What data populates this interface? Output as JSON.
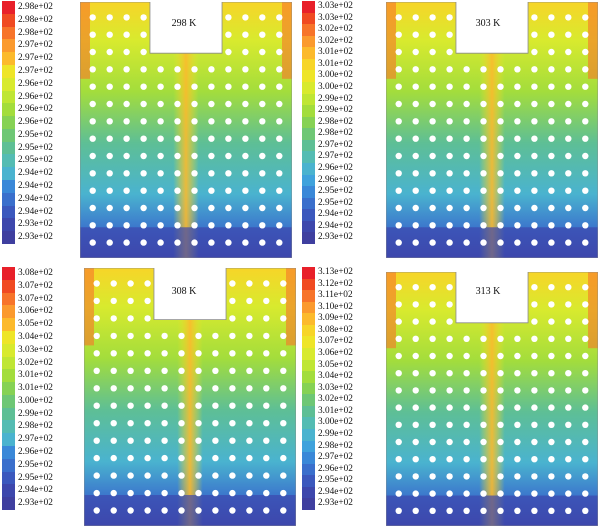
{
  "panels": [
    {
      "temperature_label": "298 K",
      "colorbar_labels": [
        "2.98e+02",
        "2.98e+02",
        "2.98e+02",
        "2.97e+02",
        "2.97e+02",
        "2.97e+02",
        "2.96e+02",
        "2.96e+02",
        "2.96e+02",
        "2.96e+02",
        "2.95e+02",
        "2.95e+02",
        "2.95e+02",
        "2.94e+02",
        "2.94e+02",
        "2.94e+02",
        "2.94e+02",
        "2.93e+02",
        "2.93e+02"
      ]
    },
    {
      "temperature_label": "303 K",
      "colorbar_labels": [
        "3.03e+02",
        "3.03e+02",
        "3.02e+02",
        "3.02e+02",
        "3.01e+02",
        "3.01e+02",
        "3.00e+02",
        "3.00e+02",
        "2.99e+02",
        "2.99e+02",
        "2.98e+02",
        "2.98e+02",
        "2.97e+02",
        "2.97e+02",
        "2.96e+02",
        "2.96e+02",
        "2.95e+02",
        "2.95e+02",
        "2.94e+02",
        "2.94e+02",
        "2.93e+02"
      ]
    },
    {
      "temperature_label": "308 K",
      "colorbar_labels": [
        "3.08e+02",
        "3.07e+02",
        "3.07e+02",
        "3.06e+02",
        "3.05e+02",
        "3.04e+02",
        "3.03e+02",
        "3.02e+02",
        "3.01e+02",
        "3.01e+02",
        "3.00e+02",
        "2.99e+02",
        "2.98e+02",
        "2.97e+02",
        "2.96e+02",
        "2.95e+02",
        "2.95e+02",
        "2.94e+02",
        "2.93e+02"
      ]
    },
    {
      "temperature_label": "313 K",
      "colorbar_labels": [
        "3.13e+02",
        "3.12e+02",
        "3.11e+02",
        "3.10e+02",
        "3.09e+02",
        "3.08e+02",
        "3.07e+02",
        "3.06e+02",
        "3.05e+02",
        "3.04e+02",
        "3.03e+02",
        "3.02e+02",
        "3.01e+02",
        "3.00e+02",
        "2.99e+02",
        "2.98e+02",
        "2.97e+02",
        "2.96e+02",
        "2.95e+02",
        "2.94e+02",
        "2.93e+02"
      ]
    }
  ],
  "colormap": [
    "#e8202a",
    "#f04a22",
    "#f7742a",
    "#fb9a2e",
    "#fcba2c",
    "#f7d528",
    "#eee528",
    "#d8ea2e",
    "#bfe634",
    "#a3dd3c",
    "#86d254",
    "#6ec775",
    "#5ebf95",
    "#54bcb3",
    "#4ab3cf",
    "#3fa2dc",
    "#3a88d8",
    "#3a6fcc",
    "#3b58bd",
    "#3d47ac",
    "#3f3f9f"
  ]
}
